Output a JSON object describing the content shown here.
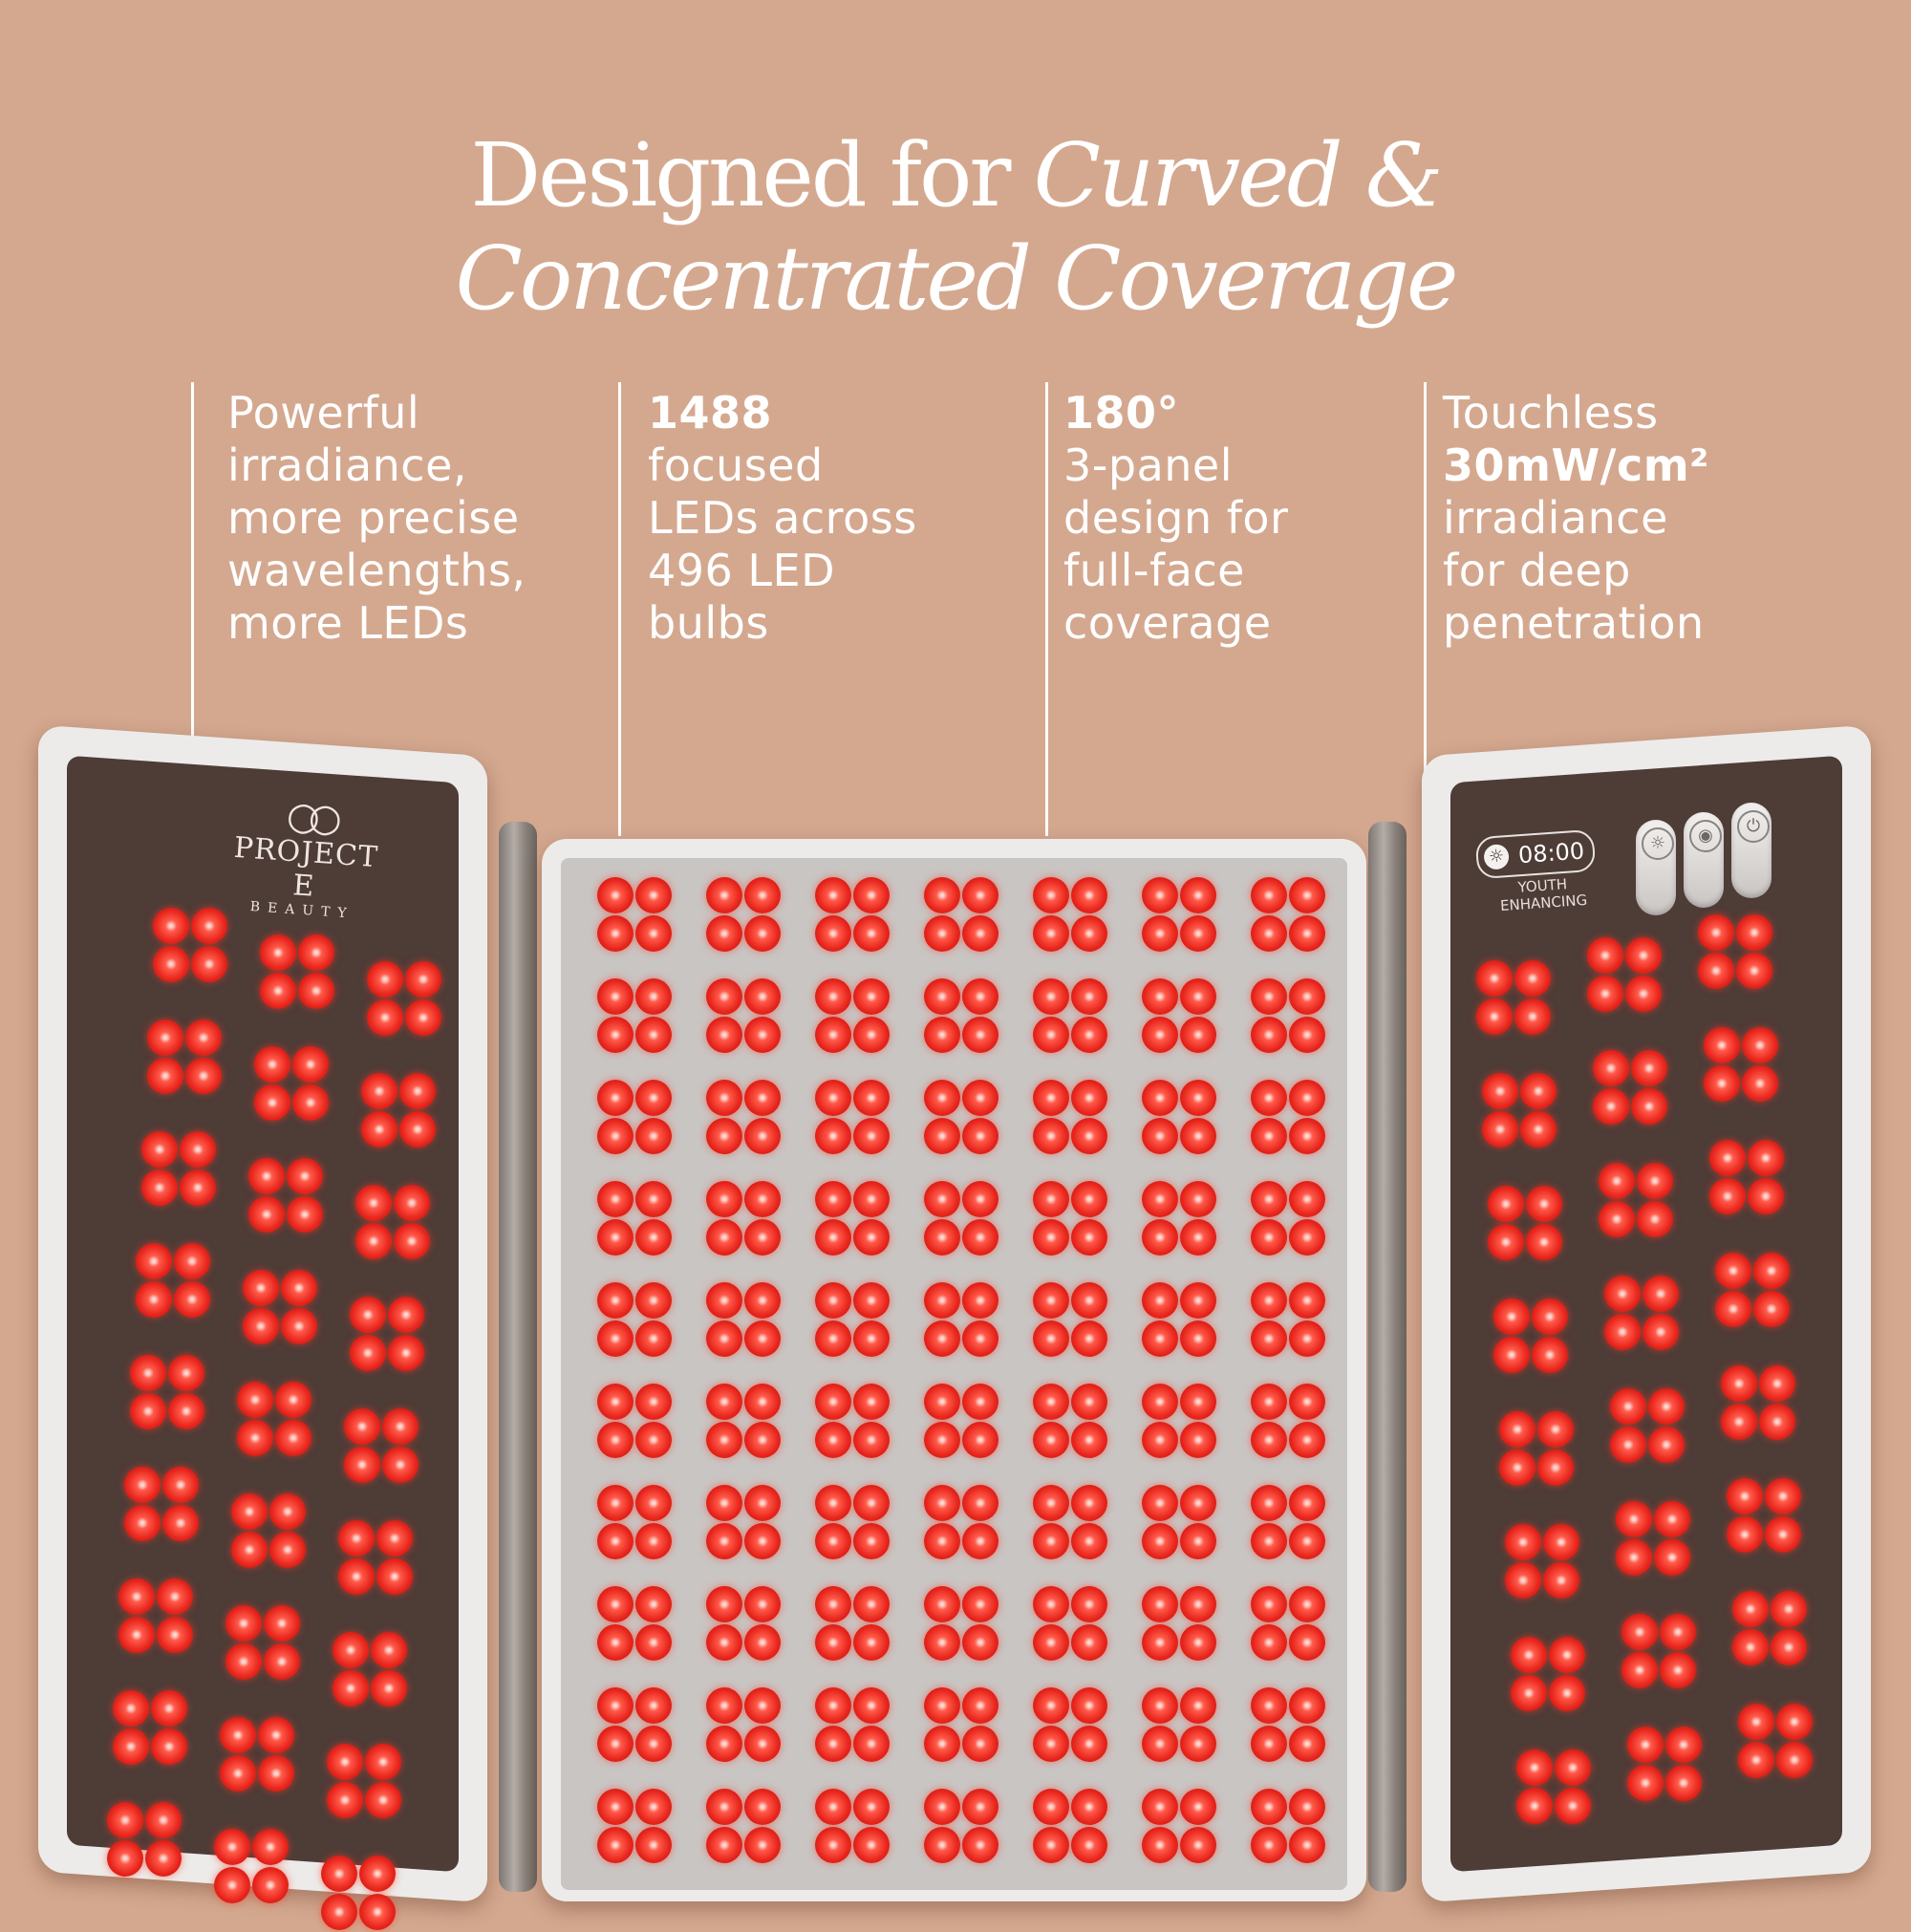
{
  "headline": {
    "line1_plain": "Designed for ",
    "line1_italic": "Curved &",
    "line2_italic": "Concentrated Coverage"
  },
  "features": [
    {
      "lines": [
        "Powerful",
        "irradiance,",
        "more precise",
        "wavelengths,",
        "more LEDs"
      ]
    },
    {
      "bold": "1488",
      "lines": [
        "focused",
        "LEDs across",
        "496 LED",
        "bulbs"
      ]
    },
    {
      "bold": "180°",
      "lines": [
        "3-panel",
        "design for",
        "full-face",
        "coverage"
      ]
    },
    {
      "pre": "Touchless",
      "bold": "30mW/cm²",
      "lines": [
        "irradiance",
        "for deep",
        "penetration"
      ]
    }
  ],
  "device": {
    "brand": "PROJECT E",
    "brand_sub": "BEAUTY",
    "timer": "08:00",
    "mode_line1": "YOUTH",
    "mode_line2": "ENHANCING",
    "icons": [
      "sun-icon",
      "drop-icon",
      "power-icon"
    ]
  },
  "colors": {
    "background": "#d4a88f",
    "panel_frame": "#ecebe9",
    "panel_dark": "#4e3c37",
    "led_red": "#e8251c"
  }
}
